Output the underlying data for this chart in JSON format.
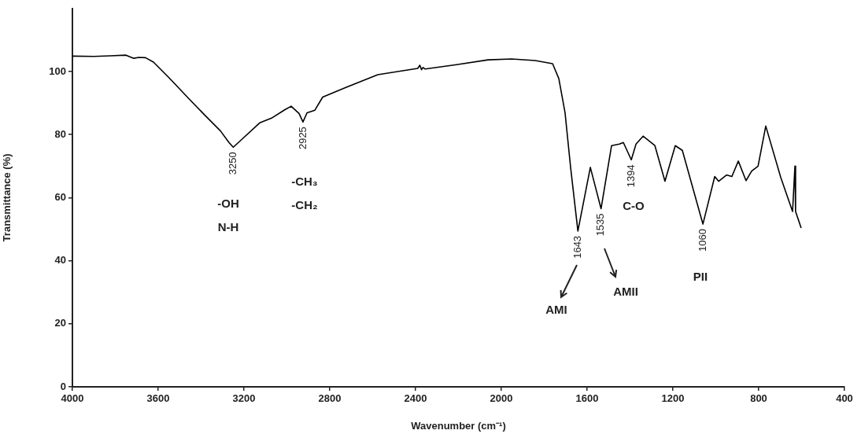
{
  "chart_data": {
    "type": "line",
    "xlabel": "Wavenumber (cm⁻¹)",
    "ylabel": "Transmittance (%)",
    "xlim": [
      4000,
      400
    ],
    "xticks": [
      4000,
      3600,
      3200,
      2800,
      2400,
      2000,
      1600,
      1200,
      800,
      400
    ],
    "ylim": [
      0,
      120
    ],
    "yticks": [
      0,
      20,
      40,
      60,
      80,
      100
    ],
    "series": [
      {
        "color": "#000000",
        "x": [
          4000,
          3900,
          3824,
          3750,
          3714,
          3690,
          3659,
          3622,
          3549,
          3457,
          3383,
          3310,
          3270,
          3250,
          3218,
          3127,
          3072,
          3009,
          2980,
          2943,
          2925,
          2906,
          2870,
          2833,
          2723,
          2576,
          2466,
          2390,
          2380,
          2372,
          2365,
          2355,
          2209,
          2062,
          1952,
          1842,
          1761,
          1732,
          1703,
          1677,
          1643,
          1585,
          1535,
          1486,
          1450,
          1431,
          1394,
          1372,
          1339,
          1284,
          1237,
          1189,
          1156,
          1060,
          1005,
          987,
          950,
          925,
          895,
          859,
          833,
          803,
          767,
          697,
          642,
          631,
          628,
          602
        ],
        "values": [
          104.9,
          104.8,
          105,
          105.2,
          104.2,
          104.5,
          104.4,
          103,
          98,
          91.4,
          86.2,
          81.2,
          77.5,
          76,
          78,
          83.7,
          85.2,
          87.9,
          89,
          86.7,
          84,
          86.9,
          87.7,
          91.9,
          95,
          99,
          100.2,
          101,
          102,
          100.6,
          101.3,
          100.8,
          102.2,
          103.7,
          104,
          103.5,
          102.5,
          97.8,
          87,
          69.6,
          49.4,
          69.6,
          56.5,
          76.5,
          77,
          77.5,
          72,
          77,
          79.5,
          76.5,
          65.2,
          76.5,
          75,
          51.6,
          66.7,
          65.2,
          67.2,
          66.7,
          71.6,
          65.4,
          68.4,
          70,
          82.7,
          66.4,
          55.6,
          70,
          55.6,
          50.4
        ]
      }
    ],
    "annotations": [
      {
        "text": "3250",
        "x": 3250,
        "y": 76
      },
      {
        "text": "2925",
        "x": 2925,
        "y": 84
      },
      {
        "text": "1643",
        "x": 1643,
        "y": 49.4
      },
      {
        "text": "1535",
        "x": 1535,
        "y": 56.5
      },
      {
        "text": "1394",
        "x": 1394,
        "y": 72
      },
      {
        "text": "1060",
        "x": 1060,
        "y": 51.6
      },
      "-OH",
      "N-H",
      "-CH₃",
      "-CH₂",
      "C-O",
      "AMI",
      "AMII",
      "PII"
    ]
  }
}
